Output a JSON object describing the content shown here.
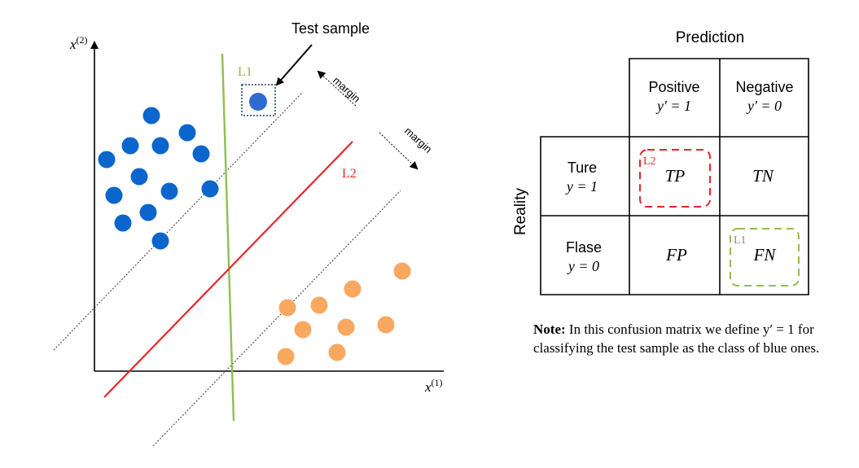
{
  "scatter": {
    "x_axis_label": "x",
    "x_axis_sup": "(1)",
    "y_axis_label": "x",
    "y_axis_sup": "(2)",
    "test_sample_label": "Test sample",
    "margin_label_1": "margin",
    "margin_label_2": "margin",
    "line1_label": "L1",
    "line2_label": "L2",
    "colors": {
      "blue": "#0a66cc",
      "orange": "#f9a860",
      "l1": "#8fbf4e",
      "l2": "#e8262a"
    }
  },
  "matrix": {
    "prediction_header": "Prediction",
    "reality_header": "Reality",
    "positive_label": "Positive",
    "positive_formula": "y′ = 1",
    "negative_label": "Negative",
    "negative_formula": "y′ = 0",
    "true_label": "Ture",
    "true_formula": "y = 1",
    "false_label": "Flase",
    "false_formula": "y = 0",
    "tp": "TP",
    "tn": "TN",
    "fp": "FP",
    "fn": "FN",
    "tp_tag": "L2",
    "fn_tag": "L1"
  },
  "note": {
    "bold": "Note:",
    "text": " In this confusion matrix we define y′ = 1 for classifying the test sample as the class of blue ones."
  }
}
